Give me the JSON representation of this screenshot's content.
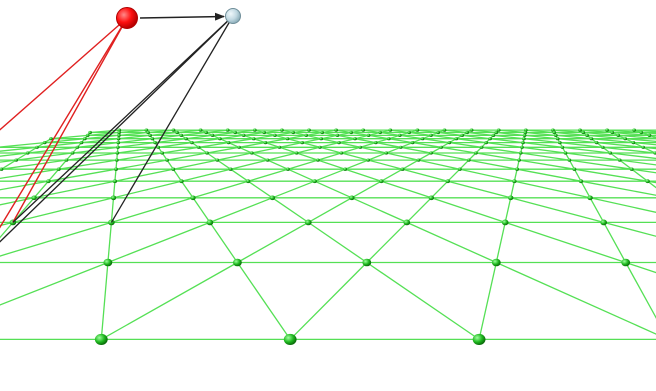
{
  "colors": {
    "background": "#ffffff",
    "grid_line": "#55e055",
    "grid_node": "#1aa81a",
    "grid_node_highlight": "#7ff07f",
    "source_node": "#ff1a1a",
    "source_node_stroke": "#b00000",
    "target_node": "#c8dde6",
    "target_node_stroke": "#6f8e99",
    "source_links": "#e02020",
    "target_links": "#222222",
    "arrow": "#222222"
  },
  "icons": {
    "source": "red-sphere-node",
    "target": "light-blue-sphere-node",
    "grid": "green-triangulated-mesh"
  }
}
